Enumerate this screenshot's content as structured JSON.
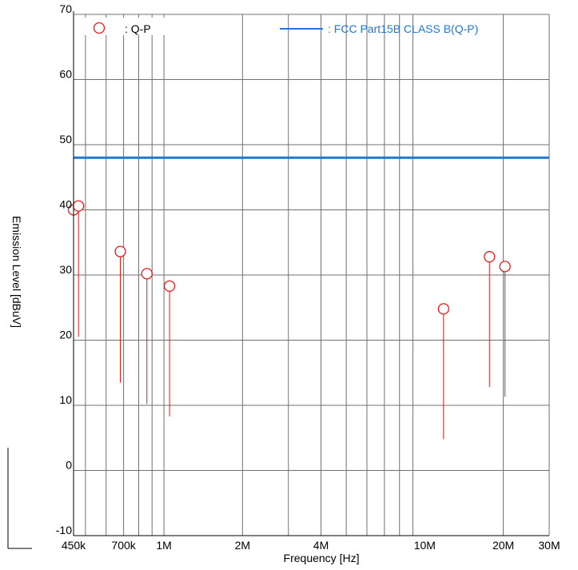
{
  "chart_data": {
    "type": "scatter",
    "xscale": "log",
    "xlim": [
      450000,
      30000000
    ],
    "ylim": [
      -10,
      70
    ],
    "xlabel": "Frequency [Hz]",
    "ylabel": "Emission Level [dBuV]",
    "xtick_labels": [
      {
        "value": 450000,
        "label": "450k"
      },
      {
        "value": 700000,
        "label": "700k"
      },
      {
        "value": 1000000,
        "label": "1M"
      },
      {
        "value": 2000000,
        "label": "2M"
      },
      {
        "value": 4000000,
        "label": "4M"
      },
      {
        "value": 10000000,
        "label": "10M"
      },
      {
        "value": 20000000,
        "label": "20M"
      },
      {
        "value": 30000000,
        "label": "30M"
      }
    ],
    "ytick_labels": [
      "-10",
      "0",
      "10",
      "20",
      "30",
      "40",
      "50",
      "60",
      "70"
    ],
    "grid": true,
    "legend_placement": "top",
    "colors": {
      "qp": "#e31b1b",
      "limit": "#1f78d4",
      "grid": "#707070"
    },
    "series": [
      {
        "name": ": Q-P",
        "marker": "circle-open",
        "color": "#e31b1b",
        "points": [
          {
            "x": 450000,
            "y": 40.0,
            "y_base": 20.5
          },
          {
            "x": 470000,
            "y": 40.6,
            "y_base": 20.5
          },
          {
            "x": 680000,
            "y": 33.6,
            "y_base": 13.5
          },
          {
            "x": 860000,
            "y": 30.2,
            "y_base": 10.2
          },
          {
            "x": 1050000,
            "y": 28.3,
            "y_base": 8.3
          },
          {
            "x": 11800000,
            "y": 24.8,
            "y_base": 4.8
          },
          {
            "x": 17700000,
            "y": 32.8,
            "y_base": 12.8
          },
          {
            "x": 20300000,
            "y": 31.3,
            "y_base": 11.3
          }
        ]
      },
      {
        "name": ": FCC Part15B CLASS B(Q-P)",
        "type": "line",
        "color": "#1f78d4",
        "x": [
          450000,
          30000000
        ],
        "values": [
          48,
          48
        ]
      }
    ]
  }
}
